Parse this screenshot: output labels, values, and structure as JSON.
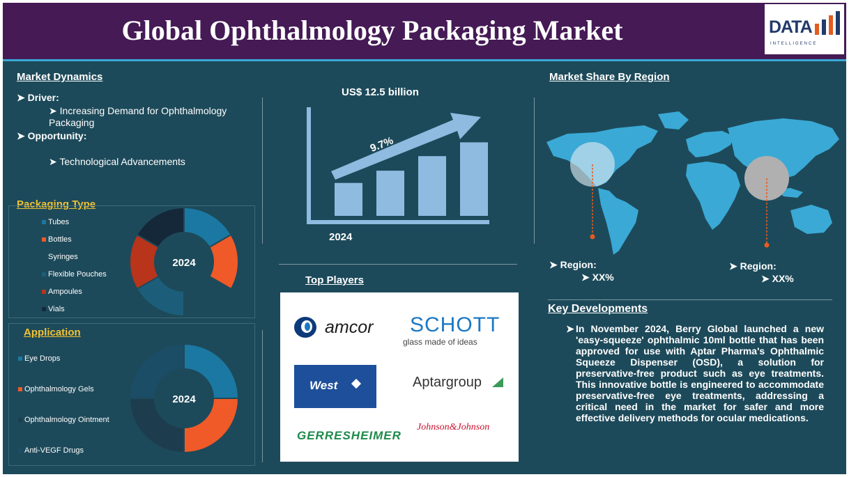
{
  "header": {
    "title": "Global Ophthalmology Packaging Market"
  },
  "logo": {
    "word": "DATA",
    "tagline": "INTELLIGENCE"
  },
  "market_dynamics": {
    "title": "Market Dynamics",
    "driver_label": "Driver:",
    "driver_item": "Increasing Demand for Ophthalmology Packaging",
    "opportunity_label": "Opportunity:",
    "opportunity_item": "Technological Advancements"
  },
  "growth": {
    "value_label": "US$ 12.5 billion",
    "cagr": "9.7%",
    "year": "2024",
    "bars": [
      0.43,
      0.59,
      0.78,
      0.96
    ]
  },
  "packaging_type": {
    "title": "Packaging Type",
    "center_label": "2024",
    "items": [
      {
        "label": "Tubes",
        "color": "#1b78a3"
      },
      {
        "label": "Bottles",
        "color": "#f05a28"
      },
      {
        "label": "Syringes",
        "color": "#1d4a5a"
      },
      {
        "label": "Flexible Pouches",
        "color": "#1c5e7a"
      },
      {
        "label": "Ampoules",
        "color": "#b8341b"
      },
      {
        "label": "Vials",
        "color": "#15283a"
      }
    ]
  },
  "application": {
    "title": "Application",
    "center_label": "2024",
    "items": [
      {
        "label": "Eye Drops",
        "color": "#1b78a3"
      },
      {
        "label": "Ophthalmology Gels",
        "color": "#f05a28"
      },
      {
        "label": "Ophthalmology Ointment",
        "color": "#1d3d4e"
      },
      {
        "label": "Anti-VEGF Drugs",
        "color": "#1c4d66"
      }
    ]
  },
  "top_players": {
    "title": "Top Players",
    "names": [
      "amcor",
      "SCHOTT",
      "glass made of ideas",
      "West",
      "Aptargroup",
      "GERRESHEIMER",
      "Johnson&Johnson"
    ]
  },
  "region": {
    "title": "Market Share By Region",
    "left_label": "Region:",
    "left_value": "XX%",
    "right_label": "Region:",
    "right_value": "XX%"
  },
  "key_developments": {
    "title": "Key Developments",
    "text": "In November 2024, Berry Global launched a new 'easy-squeeze' ophthalmic 10ml bottle that has been approved for use with Aptar Pharma's Ophthalmic Squeeze Dispenser (OSD), a solution for preservative-free product such as eye treatments. This innovative bottle is engineered to accommodate preservative-free eye treatments, addressing a critical need in the market for safer and more effective delivery methods for ocular medications."
  }
}
